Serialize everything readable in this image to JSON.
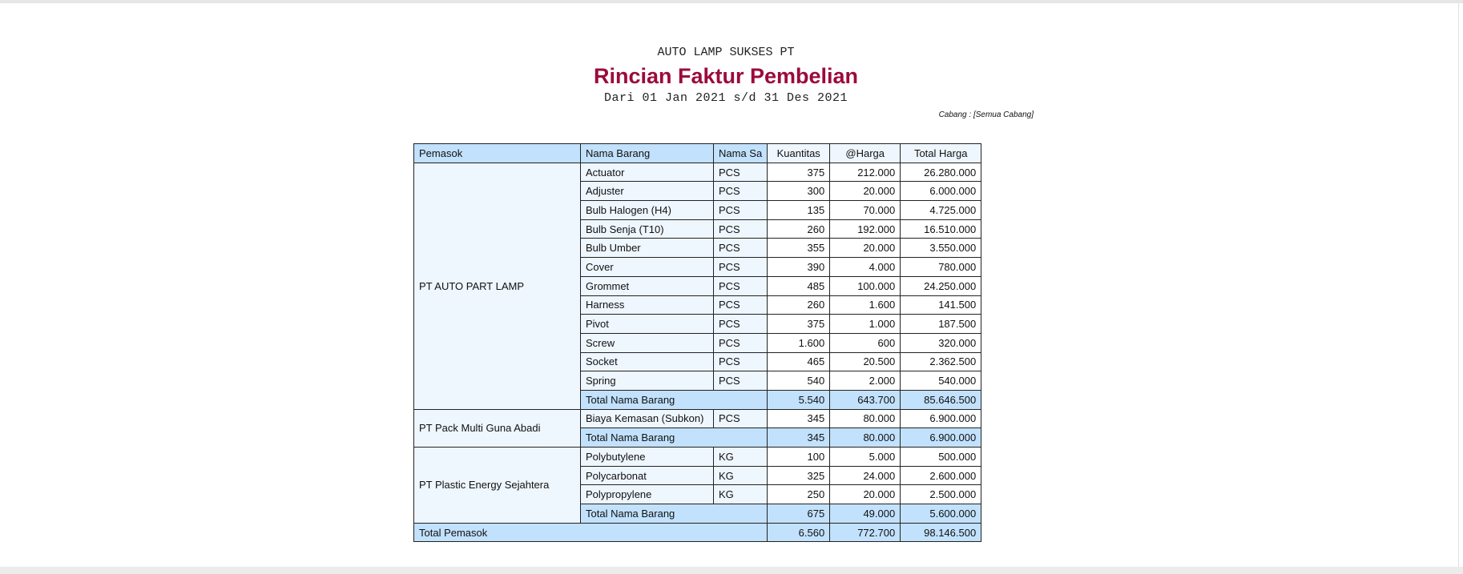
{
  "header": {
    "company": "AUTO LAMP SUKSES PT",
    "title": "Rincian Faktur Pembelian",
    "period": "Dari 01 Jan 2021 s/d 31 Des 2021",
    "branch": "Cabang : [Semua Cabang]"
  },
  "columns": [
    "Pemasok",
    "Nama Barang",
    "Nama Sa",
    "Kuantitas",
    "@Harga",
    "Total Harga"
  ],
  "colors": {
    "title": "#9c0a3c",
    "header_bg": "#c2e1fc",
    "cell_bg": "#eef6fe"
  },
  "groups": [
    {
      "supplier": "PT AUTO PART LAMP",
      "items": [
        [
          "Actuator",
          "PCS",
          "375",
          "212.000",
          "26.280.000"
        ],
        [
          "Adjuster",
          "PCS",
          "300",
          "20.000",
          "6.000.000"
        ],
        [
          "Bulb Halogen (H4)",
          "PCS",
          "135",
          "70.000",
          "4.725.000"
        ],
        [
          "Bulb Senja (T10)",
          "PCS",
          "260",
          "192.000",
          "16.510.000"
        ],
        [
          "Bulb Umber",
          "PCS",
          "355",
          "20.000",
          "3.550.000"
        ],
        [
          "Cover",
          "PCS",
          "390",
          "4.000",
          "780.000"
        ],
        [
          "Grommet",
          "PCS",
          "485",
          "100.000",
          "24.250.000"
        ],
        [
          "Harness",
          "PCS",
          "260",
          "1.600",
          "141.500"
        ],
        [
          "Pivot",
          "PCS",
          "375",
          "1.000",
          "187.500"
        ],
        [
          "Screw",
          "PCS",
          "1.600",
          "600",
          "320.000"
        ],
        [
          "Socket",
          "PCS",
          "465",
          "20.500",
          "2.362.500"
        ],
        [
          "Spring",
          "PCS",
          "540",
          "2.000",
          "540.000"
        ]
      ],
      "subtotal": {
        "label": "Total Nama Barang",
        "qty": "5.540",
        "price": "643.700",
        "total": "85.646.500"
      }
    },
    {
      "supplier": "PT Pack Multi Guna Abadi",
      "items": [
        [
          "Biaya Kemasan (Subkon)",
          "PCS",
          "345",
          "80.000",
          "6.900.000"
        ]
      ],
      "subtotal": {
        "label": "Total Nama Barang",
        "qty": "345",
        "price": "80.000",
        "total": "6.900.000"
      }
    },
    {
      "supplier": "PT Plastic Energy Sejahtera",
      "items": [
        [
          "Polybutylene",
          "KG",
          "100",
          "5.000",
          "500.000"
        ],
        [
          "Polycarbonat",
          "KG",
          "325",
          "24.000",
          "2.600.000"
        ],
        [
          "Polypropylene",
          "KG",
          "250",
          "20.000",
          "2.500.000"
        ]
      ],
      "subtotal": {
        "label": "Total Nama Barang",
        "qty": "675",
        "price": "49.000",
        "total": "5.600.000"
      }
    }
  ],
  "grand_total": {
    "label": "Total Pemasok",
    "qty": "6.560",
    "price": "772.700",
    "total": "98.146.500"
  }
}
